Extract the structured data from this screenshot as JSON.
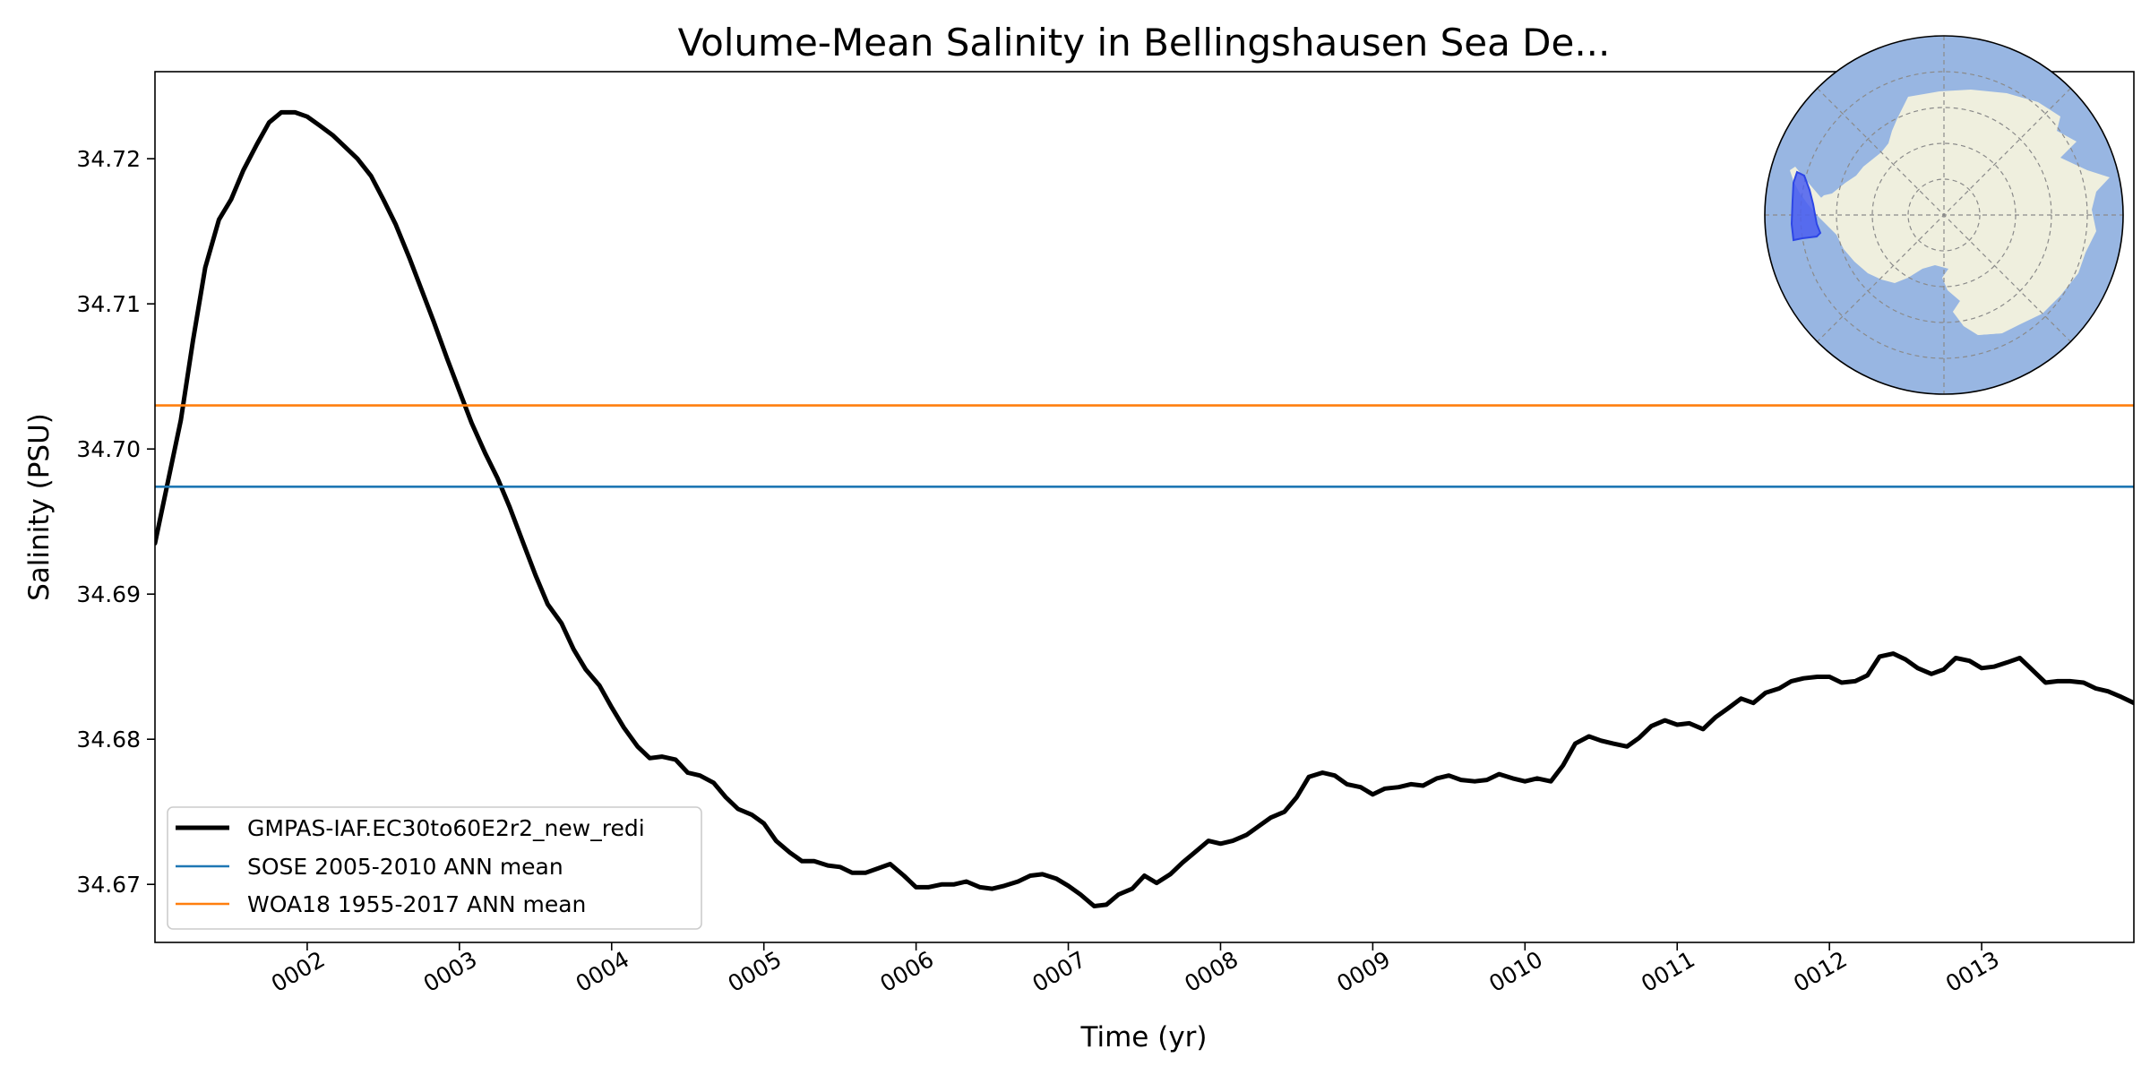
{
  "chart_data": {
    "type": "line",
    "title": "Volume-Mean Salinity in Bellingshausen Sea De...",
    "xlabel": "Time (yr)",
    "ylabel": "Salinity (PSU)",
    "xlim": [
      1.0,
      14.0
    ],
    "ylim": [
      34.666,
      34.726
    ],
    "xticks": [
      2,
      3,
      4,
      5,
      6,
      7,
      8,
      9,
      10,
      11,
      12,
      13
    ],
    "xtick_labels": [
      "0002",
      "0003",
      "0004",
      "0005",
      "0006",
      "0007",
      "0008",
      "0009",
      "0010",
      "0011",
      "0012",
      "0013"
    ],
    "yticks": [
      34.67,
      34.68,
      34.69,
      34.7,
      34.71,
      34.72
    ],
    "ytick_labels": [
      "34.67",
      "34.68",
      "34.69",
      "34.70",
      "34.71",
      "34.72"
    ],
    "grid": false,
    "legend_position": "lower-left",
    "series": [
      {
        "name": "GMPAS-IAF.EC30to60E2r2_new_redi",
        "color": "#000000",
        "style": "thick-line",
        "x": [
          1.0,
          1.08,
          1.17,
          1.25,
          1.33,
          1.42,
          1.5,
          1.58,
          1.67,
          1.75,
          1.83,
          1.92,
          2.0,
          2.08,
          2.17,
          2.25,
          2.33,
          2.42,
          2.5,
          2.58,
          2.67,
          2.75,
          2.83,
          2.92,
          3.0,
          3.08,
          3.17,
          3.25,
          3.33,
          3.42,
          3.5,
          3.58,
          3.67,
          3.75,
          3.83,
          3.92,
          4.0,
          4.08,
          4.17,
          4.25,
          4.33,
          4.42,
          4.5,
          4.58,
          4.67,
          4.75,
          4.83,
          4.92,
          5.0,
          5.08,
          5.17,
          5.25,
          5.33,
          5.42,
          5.5,
          5.58,
          5.67,
          5.75,
          5.83,
          5.92,
          6.0,
          6.08,
          6.17,
          6.25,
          6.33,
          6.42,
          6.5,
          6.58,
          6.67,
          6.75,
          6.83,
          6.92,
          7.0,
          7.08,
          7.17,
          7.25,
          7.33,
          7.42,
          7.5,
          7.58,
          7.67,
          7.75,
          7.83,
          7.92,
          8.0,
          8.08,
          8.17,
          8.25,
          8.33,
          8.42,
          8.5,
          8.58,
          8.67,
          8.75,
          8.83,
          8.92,
          9.0,
          9.08,
          9.17,
          9.25,
          9.33,
          9.42,
          9.5,
          9.58,
          9.67,
          9.75,
          9.83,
          9.92,
          10.0,
          10.08,
          10.17,
          10.25,
          10.33,
          10.42,
          10.5,
          10.58,
          10.67,
          10.75,
          10.83,
          10.92,
          11.0,
          11.08,
          11.17,
          11.25,
          11.33,
          11.42,
          11.5,
          11.58,
          11.67,
          11.75,
          11.83,
          11.92,
          12.0,
          12.08,
          12.17,
          12.25,
          12.33,
          12.42,
          12.5,
          12.58,
          12.67,
          12.75,
          12.83,
          12.92,
          13.0,
          13.08,
          13.17,
          13.25,
          13.33,
          13.42,
          13.5,
          13.58,
          13.67,
          13.75,
          13.83,
          13.92,
          14.0
        ],
        "y": [
          34.6935,
          34.6975,
          34.702,
          34.7075,
          34.7125,
          34.7158,
          34.7172,
          34.7192,
          34.721,
          34.7225,
          34.7232,
          34.7232,
          34.7229,
          34.7223,
          34.7216,
          34.7208,
          34.72,
          34.7188,
          34.7172,
          34.7155,
          34.7132,
          34.711,
          34.7088,
          34.7062,
          34.704,
          34.7018,
          34.6997,
          34.698,
          34.696,
          34.6935,
          34.6913,
          34.6893,
          34.688,
          34.6862,
          34.6848,
          34.6837,
          34.6822,
          34.6808,
          34.6795,
          34.6787,
          34.6788,
          34.6786,
          34.6777,
          34.6775,
          34.677,
          34.676,
          34.6752,
          34.6748,
          34.6742,
          34.673,
          34.6722,
          34.6716,
          34.6716,
          34.6713,
          34.6712,
          34.6708,
          34.6708,
          34.6711,
          34.6714,
          34.6706,
          34.6698,
          34.6698,
          34.67,
          34.67,
          34.6702,
          34.6698,
          34.6697,
          34.6699,
          34.6702,
          34.6706,
          34.6707,
          34.6704,
          34.6699,
          34.6693,
          34.6685,
          34.6686,
          34.6693,
          34.6697,
          34.6706,
          34.6701,
          34.6707,
          34.6715,
          34.6722,
          34.673,
          34.6728,
          34.673,
          34.6734,
          34.674,
          34.6746,
          34.675,
          34.676,
          34.6774,
          34.6777,
          34.6775,
          34.6769,
          34.6767,
          34.6762,
          34.6766,
          34.6767,
          34.6769,
          34.6768,
          34.6773,
          34.6775,
          34.6772,
          34.6771,
          34.6772,
          34.6776,
          34.6773,
          34.6771,
          34.6773,
          34.6771,
          34.6782,
          34.6797,
          34.6802,
          34.6799,
          34.6797,
          34.6795,
          34.6801,
          34.6809,
          34.6813,
          34.681,
          34.6811,
          34.6807,
          34.6815,
          34.6821,
          34.6828,
          34.6825,
          34.6832,
          34.6835,
          34.684,
          34.6842,
          34.6843,
          34.6843,
          34.6839,
          34.684,
          34.6844,
          34.6857,
          34.6859,
          34.6855,
          34.6849,
          34.6845,
          34.6848,
          34.6856,
          34.6854,
          34.6849,
          34.685,
          34.6853,
          34.6856,
          34.6848,
          34.6839,
          34.684,
          34.684,
          34.6839,
          34.6835,
          34.6833,
          34.6829,
          34.6825
        ]
      },
      {
        "name": "SOSE 2005-2010 ANN mean",
        "color": "#1f77b4",
        "style": "horizontal-reference",
        "y": 34.6974
      },
      {
        "name": "WOA18 1955-2017 ANN mean",
        "color": "#ff7f0e",
        "style": "horizontal-reference",
        "y": 34.703
      }
    ],
    "inset_map": {
      "projection": "south-polar-stereographic",
      "ocean_color": "#98b6e2",
      "land_color": "#efefde",
      "region_color": "#4a5ef0",
      "region": "Bellingshausen Sea"
    }
  }
}
